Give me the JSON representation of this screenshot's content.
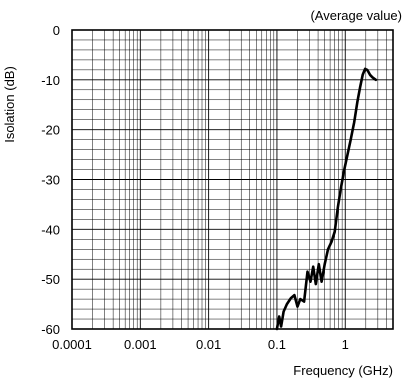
{
  "chart_data": {
    "type": "line",
    "title": "",
    "annotation": "(Average value)",
    "xlabel": "Frequency (GHz)",
    "ylabel": "Isolation (dB)",
    "xscale": "log",
    "xlim": [
      0.0001,
      5
    ],
    "ylim": [
      -60,
      0
    ],
    "x_tick_labels": [
      "0.0001",
      "0.001",
      "0.01",
      "0.1",
      "1"
    ],
    "x_tick_values": [
      0.0001,
      0.001,
      0.01,
      0.1,
      1
    ],
    "y_tick_labels": [
      "0",
      "-10",
      "-20",
      "-30",
      "-40",
      "-50",
      "-60"
    ],
    "y_tick_values": [
      0,
      -10,
      -20,
      -30,
      -40,
      -50,
      -60
    ],
    "grid": true,
    "series": [
      {
        "x": [
          0.1,
          0.108,
          0.115,
          0.125,
          0.14,
          0.16,
          0.18,
          0.2,
          0.22,
          0.25,
          0.28,
          0.31,
          0.34,
          0.37,
          0.41,
          0.45,
          0.5,
          0.56,
          0.63,
          0.7,
          0.78,
          0.87,
          0.97,
          1.08,
          1.2,
          1.35,
          1.5,
          1.65,
          1.8,
          1.95,
          2.1,
          2.3,
          2.5,
          2.8
        ],
        "y": [
          -60,
          -57.5,
          -59.5,
          -56.5,
          -55,
          -53.8,
          -53.2,
          -55.5,
          -54,
          -54.5,
          -48.5,
          -50.5,
          -47.5,
          -51,
          -47,
          -50.5,
          -47,
          -44,
          -42.5,
          -40.5,
          -35.5,
          -31.5,
          -28,
          -25,
          -22,
          -18.5,
          -14.5,
          -11.5,
          -9,
          -7.8,
          -8,
          -9,
          -9.5,
          -10
        ]
      }
    ]
  }
}
